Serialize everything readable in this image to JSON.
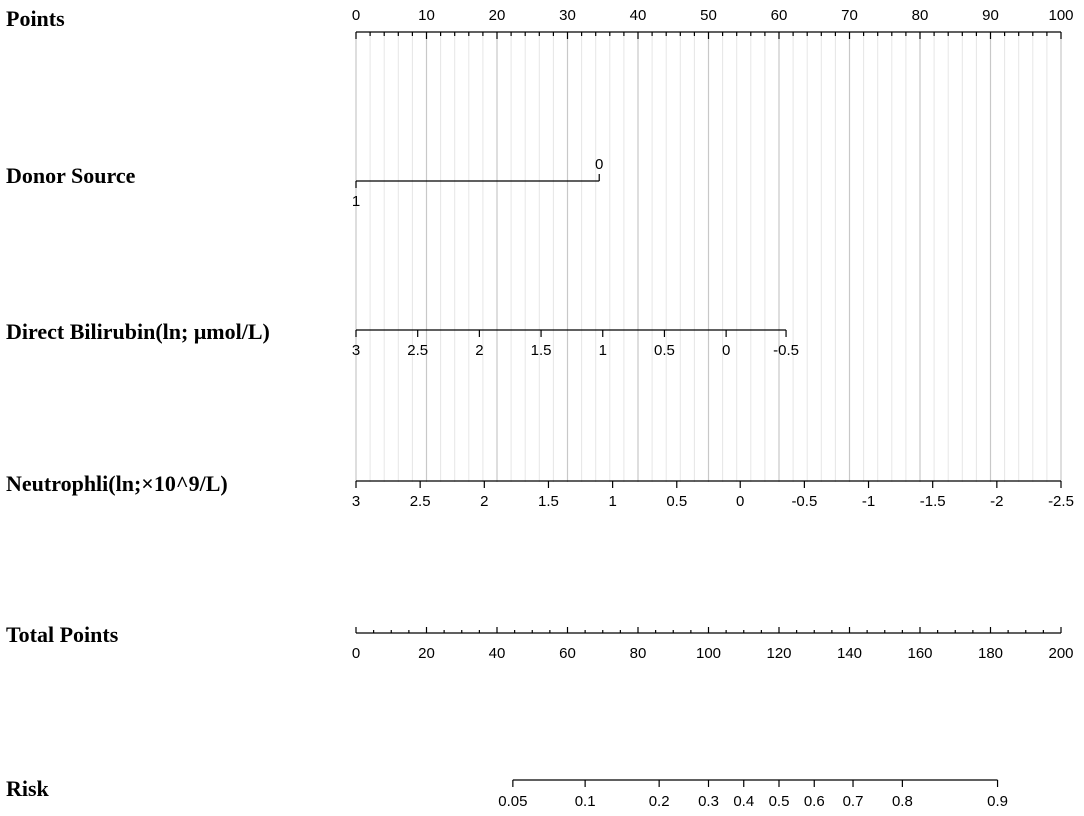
{
  "chart_data": {
    "type": "nomogram",
    "points_axis": {
      "label": "Points",
      "range": [
        0,
        100
      ],
      "ticks": [
        "0",
        "10",
        "20",
        "30",
        "40",
        "50",
        "60",
        "70",
        "80",
        "90",
        "100"
      ]
    },
    "grid": true,
    "variables": [
      {
        "label": "Donor Source",
        "scale": [
          {
            "text": "1",
            "points": 0,
            "position": "below"
          },
          {
            "text": "0",
            "points": 34.5,
            "position": "above"
          }
        ]
      },
      {
        "label": "Direct Bilirubin(ln; μmol/L)",
        "scale": [
          {
            "text": "3",
            "points": 0
          },
          {
            "text": "2.5",
            "points": 8.75
          },
          {
            "text": "2",
            "points": 17.5
          },
          {
            "text": "1.5",
            "points": 26.25
          },
          {
            "text": "1",
            "points": 35
          },
          {
            "text": "0.5",
            "points": 43.75
          },
          {
            "text": "0",
            "points": 52.5
          },
          {
            "text": "-0.5",
            "points": 61
          }
        ]
      },
      {
        "label": "Neutrophli(ln;×10^9/L)",
        "scale": [
          {
            "text": "3",
            "points": 0
          },
          {
            "text": "2.5",
            "points": 9.1
          },
          {
            "text": "2",
            "points": 18.2
          },
          {
            "text": "1.5",
            "points": 27.3
          },
          {
            "text": "1",
            "points": 36.4
          },
          {
            "text": "0.5",
            "points": 45.5
          },
          {
            "text": "0",
            "points": 54.5
          },
          {
            "text": "-0.5",
            "points": 63.6
          },
          {
            "text": "-1",
            "points": 72.7
          },
          {
            "text": "-1.5",
            "points": 81.8
          },
          {
            "text": "-2",
            "points": 90.9
          },
          {
            "text": "-2.5",
            "points": 100
          }
        ]
      }
    ],
    "total_points_axis": {
      "label": "Total Points",
      "range": [
        0,
        200
      ],
      "ticks": [
        "0",
        "20",
        "40",
        "60",
        "80",
        "100",
        "120",
        "140",
        "160",
        "180",
        "200"
      ]
    },
    "risk_axis": {
      "label": "Risk",
      "ticks": [
        {
          "text": "0.05",
          "total_points": 44.5
        },
        {
          "text": "0.1",
          "total_points": 65
        },
        {
          "text": "0.2",
          "total_points": 86
        },
        {
          "text": "0.3",
          "total_points": 100
        },
        {
          "text": "0.4",
          "total_points": 110
        },
        {
          "text": "0.5",
          "total_points": 120
        },
        {
          "text": "0.6",
          "total_points": 130
        },
        {
          "text": "0.7",
          "total_points": 141
        },
        {
          "text": "0.8",
          "total_points": 155
        },
        {
          "text": "0.9",
          "total_points": 182
        }
      ]
    }
  }
}
